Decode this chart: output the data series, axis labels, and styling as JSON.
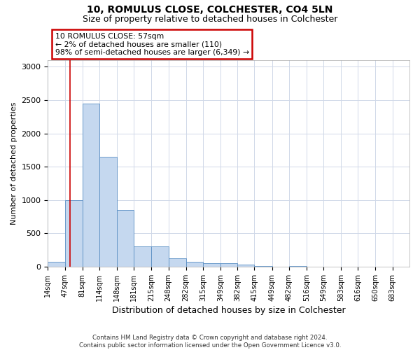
{
  "title": "10, ROMULUS CLOSE, COLCHESTER, CO4 5LN",
  "subtitle": "Size of property relative to detached houses in Colchester",
  "xlabel": "Distribution of detached houses by size in Colchester",
  "ylabel": "Number of detached properties",
  "bin_edges": [
    14,
    47,
    81,
    114,
    148,
    181,
    215,
    248,
    282,
    315,
    349,
    382,
    415,
    449,
    482,
    516,
    549,
    583,
    616,
    650,
    683
  ],
  "bar_heights": [
    70,
    1000,
    2450,
    1650,
    850,
    300,
    300,
    130,
    70,
    55,
    55,
    30,
    5,
    0,
    5,
    0,
    0,
    0,
    0,
    0
  ],
  "bar_color": "#c5d8ef",
  "bar_edge_color": "#5a8fc4",
  "grid_color": "#d0d8e8",
  "vline_x": 57,
  "vline_color": "#cc0000",
  "annotation_line1": "10 ROMULUS CLOSE: 57sqm",
  "annotation_line2": "← 2% of detached houses are smaller (110)",
  "annotation_line3": "98% of semi-detached houses are larger (6,349) →",
  "annotation_box_color": "#cc0000",
  "ylim": [
    0,
    3100
  ],
  "yticks": [
    0,
    500,
    1000,
    1500,
    2000,
    2500,
    3000
  ],
  "title_fontsize": 10,
  "subtitle_fontsize": 9,
  "ylabel_fontsize": 8,
  "xlabel_fontsize": 9,
  "tick_fontsize": 7,
  "footer_line1": "Contains HM Land Registry data © Crown copyright and database right 2024.",
  "footer_line2": "Contains public sector information licensed under the Open Government Licence v3.0."
}
